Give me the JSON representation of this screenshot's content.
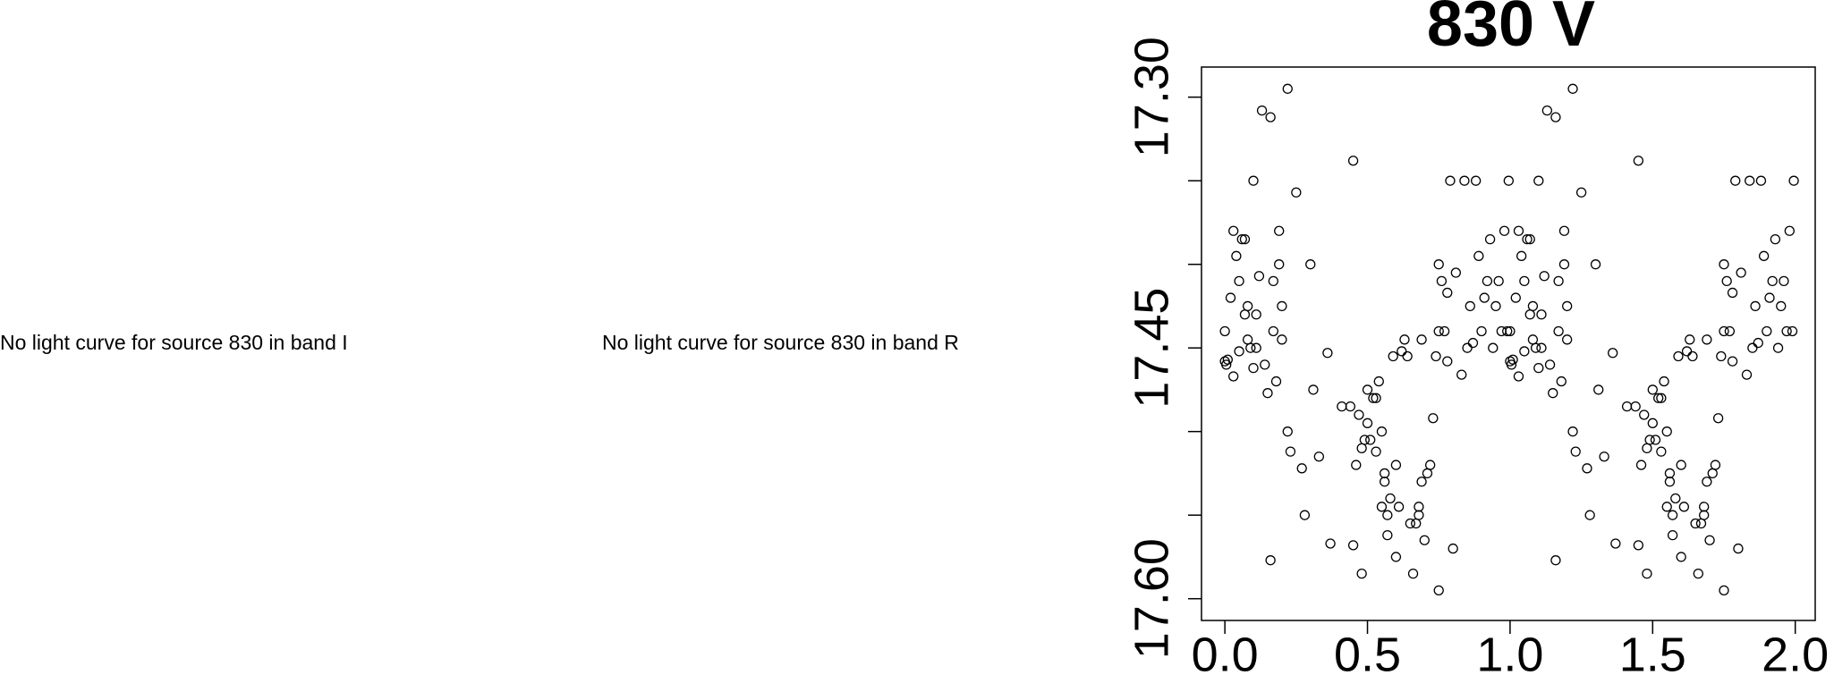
{
  "messages": [
    "No light curve for source 830 in band I",
    "No light curve for source 830 in band R"
  ],
  "chart_data": {
    "type": "scatter",
    "title": "830 V",
    "xlim": [
      -0.082,
      2.07
    ],
    "ylim": [
      17.613,
      17.282
    ],
    "xticks": [
      {
        "value": 0,
        "label": "0.0"
      },
      {
        "value": 0.5,
        "label": "0.5"
      },
      {
        "value": 1,
        "label": "1.0"
      },
      {
        "value": 1.5,
        "label": "1.5"
      },
      {
        "value": 2,
        "label": "2.0"
      }
    ],
    "yticks": [
      {
        "value": 17.3,
        "label": "17.30"
      },
      {
        "value": 17.35,
        "label": null
      },
      {
        "value": 17.4,
        "label": null
      },
      {
        "value": 17.45,
        "label": "17.45"
      },
      {
        "value": 17.5,
        "label": null
      },
      {
        "value": 17.55,
        "label": null
      },
      {
        "value": 17.6,
        "label": "17.60"
      }
    ],
    "color": "#000000",
    "x": [
      0.0,
      0.0,
      0.005,
      0.01,
      0.02,
      0.03,
      0.03,
      0.04,
      0.05,
      0.05,
      0.06,
      0.07,
      0.07,
      0.08,
      0.08,
      0.09,
      0.1,
      0.1,
      0.11,
      0.11,
      0.12,
      0.13,
      0.14,
      0.15,
      0.16,
      0.16,
      0.17,
      0.17,
      0.18,
      0.19,
      0.19,
      0.2,
      0.2,
      0.22,
      0.22,
      0.23,
      0.25,
      0.27,
      0.28,
      0.3,
      0.31,
      0.33,
      0.36,
      0.37,
      0.41,
      0.44,
      0.45,
      0.45,
      0.46,
      0.47,
      0.48,
      0.48,
      0.49,
      0.5,
      0.5,
      0.51,
      0.52,
      0.53,
      0.53,
      0.54,
      0.55,
      0.55,
      0.56,
      0.56,
      0.57,
      0.57,
      0.58,
      0.59,
      0.6,
      0.6,
      0.61,
      0.62,
      0.63,
      0.64,
      0.65,
      0.66,
      0.67,
      0.68,
      0.68,
      0.69,
      0.69,
      0.7,
      0.71,
      0.72,
      0.73,
      0.74,
      0.75,
      0.75,
      0.75,
      0.76,
      0.77,
      0.78,
      0.78,
      0.79,
      0.8,
      0.81,
      0.83,
      0.84,
      0.85,
      0.86,
      0.87,
      0.88,
      0.89,
      0.9,
      0.91,
      0.92,
      0.93,
      0.94,
      0.95,
      0.96,
      0.97,
      0.98,
      0.99,
      0.995,
      1.0,
      1.0,
      1.005,
      1.01,
      1.02,
      1.03,
      1.03,
      1.04,
      1.05,
      1.05,
      1.06,
      1.07,
      1.07,
      1.08,
      1.08,
      1.09,
      1.1,
      1.1,
      1.11,
      1.11,
      1.12,
      1.13,
      1.14,
      1.15,
      1.16,
      1.16,
      1.17,
      1.17,
      1.18,
      1.19,
      1.19,
      1.2,
      1.2,
      1.22,
      1.22,
      1.23,
      1.25,
      1.27,
      1.28,
      1.3,
      1.31,
      1.33,
      1.36,
      1.37,
      1.41,
      1.44,
      1.45,
      1.45,
      1.46,
      1.47,
      1.48,
      1.48,
      1.49,
      1.5,
      1.5,
      1.51,
      1.52,
      1.53,
      1.53,
      1.54,
      1.55,
      1.55,
      1.56,
      1.56,
      1.57,
      1.57,
      1.58,
      1.59,
      1.6,
      1.6,
      1.61,
      1.62,
      1.63,
      1.64,
      1.65,
      1.66,
      1.67,
      1.68,
      1.68,
      1.69,
      1.69,
      1.7,
      1.71,
      1.72,
      1.73,
      1.74,
      1.75,
      1.75,
      1.75,
      1.76,
      1.77,
      1.78,
      1.78,
      1.79,
      1.8,
      1.81,
      1.83,
      1.84,
      1.85,
      1.86,
      1.87,
      1.88,
      1.89,
      1.9,
      1.91,
      1.92,
      1.93,
      1.94,
      1.95,
      1.96,
      1.97,
      1.98,
      1.99,
      1.995
    ],
    "values": [
      17.44,
      17.458,
      17.46,
      17.457,
      17.42,
      17.38,
      17.467,
      17.395,
      17.452,
      17.41,
      17.385,
      17.385,
      17.43,
      17.445,
      17.425,
      17.45,
      17.35,
      17.462,
      17.45,
      17.43,
      17.407,
      17.308,
      17.46,
      17.477,
      17.312,
      17.577,
      17.41,
      17.44,
      17.47,
      17.4,
      17.38,
      17.425,
      17.445,
      17.295,
      17.5,
      17.512,
      17.357,
      17.522,
      17.55,
      17.4,
      17.475,
      17.515,
      17.453,
      17.567,
      17.485,
      17.485,
      17.338,
      17.568,
      17.52,
      17.49,
      17.51,
      17.585,
      17.505,
      17.475,
      17.495,
      17.505,
      17.48,
      17.48,
      17.512,
      17.47,
      17.5,
      17.545,
      17.525,
      17.53,
      17.55,
      17.562,
      17.54,
      17.455,
      17.52,
      17.575,
      17.545,
      17.452,
      17.445,
      17.455,
      17.555,
      17.585,
      17.555,
      17.55,
      17.545,
      17.53,
      17.445,
      17.565,
      17.525,
      17.52,
      17.492,
      17.455,
      17.44,
      17.4,
      17.595,
      17.41,
      17.44,
      17.458,
      17.417,
      17.35,
      17.57,
      17.405,
      17.466,
      17.35,
      17.45,
      17.425,
      17.447,
      17.35,
      17.395,
      17.44,
      17.42,
      17.41,
      17.385,
      17.45,
      17.425,
      17.41,
      17.44,
      17.38,
      17.44,
      17.35,
      17.44,
      17.458,
      17.46,
      17.457,
      17.42,
      17.38,
      17.467,
      17.395,
      17.452,
      17.41,
      17.385,
      17.385,
      17.43,
      17.445,
      17.425,
      17.45,
      17.35,
      17.462,
      17.45,
      17.43,
      17.407,
      17.308,
      17.46,
      17.477,
      17.312,
      17.577,
      17.41,
      17.44,
      17.47,
      17.4,
      17.38,
      17.425,
      17.445,
      17.295,
      17.5,
      17.512,
      17.357,
      17.522,
      17.55,
      17.4,
      17.475,
      17.515,
      17.453,
      17.567,
      17.485,
      17.485,
      17.338,
      17.568,
      17.52,
      17.49,
      17.51,
      17.585,
      17.505,
      17.475,
      17.495,
      17.505,
      17.48,
      17.48,
      17.512,
      17.47,
      17.5,
      17.545,
      17.525,
      17.53,
      17.55,
      17.562,
      17.54,
      17.455,
      17.52,
      17.575,
      17.545,
      17.452,
      17.445,
      17.455,
      17.555,
      17.585,
      17.555,
      17.55,
      17.545,
      17.53,
      17.445,
      17.565,
      17.525,
      17.52,
      17.492,
      17.455,
      17.44,
      17.4,
      17.595,
      17.41,
      17.44,
      17.458,
      17.417,
      17.35,
      17.57,
      17.405,
      17.466,
      17.35,
      17.45,
      17.425,
      17.447,
      17.35,
      17.395,
      17.44,
      17.42,
      17.41,
      17.385,
      17.45,
      17.425,
      17.41,
      17.44,
      17.38,
      17.44,
      17.35
    ]
  }
}
